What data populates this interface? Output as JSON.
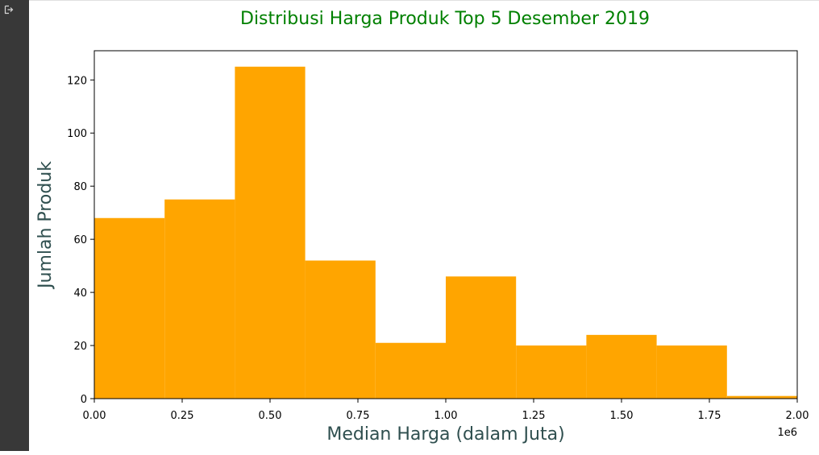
{
  "output_cell": {
    "icon": "output-arrow-icon"
  },
  "chart_data": {
    "type": "bar",
    "title": "Distribusi Harga Produk Top 5 Desember 2019",
    "xlabel": "Median Harga (dalam Juta)",
    "ylabel": "Jumlah Produk",
    "x_offset_label": "1e6",
    "bin_edges": [
      0.0,
      0.2,
      0.4,
      0.6,
      0.8,
      1.0,
      1.2,
      1.4,
      1.6,
      1.8,
      2.0
    ],
    "values": [
      68,
      75,
      125,
      52,
      21,
      46,
      20,
      24,
      20,
      1
    ],
    "xlim": [
      0,
      2.0
    ],
    "ylim": [
      0,
      131
    ],
    "xticks": [
      0.0,
      0.25,
      0.5,
      0.75,
      1.0,
      1.25,
      1.5,
      1.75,
      2.0
    ],
    "xtick_labels": [
      "0.00",
      "0.25",
      "0.50",
      "0.75",
      "1.00",
      "1.25",
      "1.50",
      "1.75",
      "2.00"
    ],
    "yticks": [
      0,
      20,
      40,
      60,
      80,
      100,
      120
    ],
    "ytick_labels": [
      "0",
      "20",
      "40",
      "60",
      "80",
      "100",
      "120"
    ],
    "bar_color": "#ffa500",
    "title_color": "#008000",
    "label_color": "#2f4f4f",
    "grid": false,
    "legend": "none"
  }
}
